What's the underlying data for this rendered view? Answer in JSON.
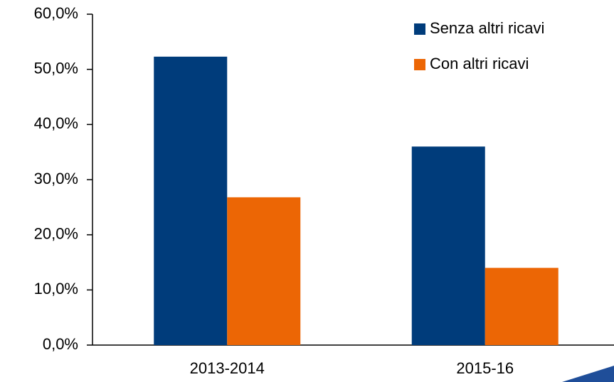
{
  "chart_data": {
    "type": "bar",
    "categories": [
      "2013-2014",
      "2015-16"
    ],
    "series": [
      {
        "name": "Senza altri ricavi",
        "color": "#003c7b",
        "values": [
          52.3,
          36.0
        ]
      },
      {
        "name": "Con altri ricavi",
        "color": "#ec6605",
        "values": [
          26.8,
          14.0
        ]
      }
    ],
    "ylim": [
      0,
      60
    ],
    "yticks": [
      {
        "value": 0,
        "label": "0,0%"
      },
      {
        "value": 10,
        "label": "10,0%"
      },
      {
        "value": 20,
        "label": "20,0%"
      },
      {
        "value": 30,
        "label": "30,0%"
      },
      {
        "value": 40,
        "label": "40,0%"
      },
      {
        "value": 50,
        "label": "50,0%"
      },
      {
        "value": 60,
        "label": "60,0%"
      }
    ],
    "grid": false,
    "legend": "top-right"
  }
}
